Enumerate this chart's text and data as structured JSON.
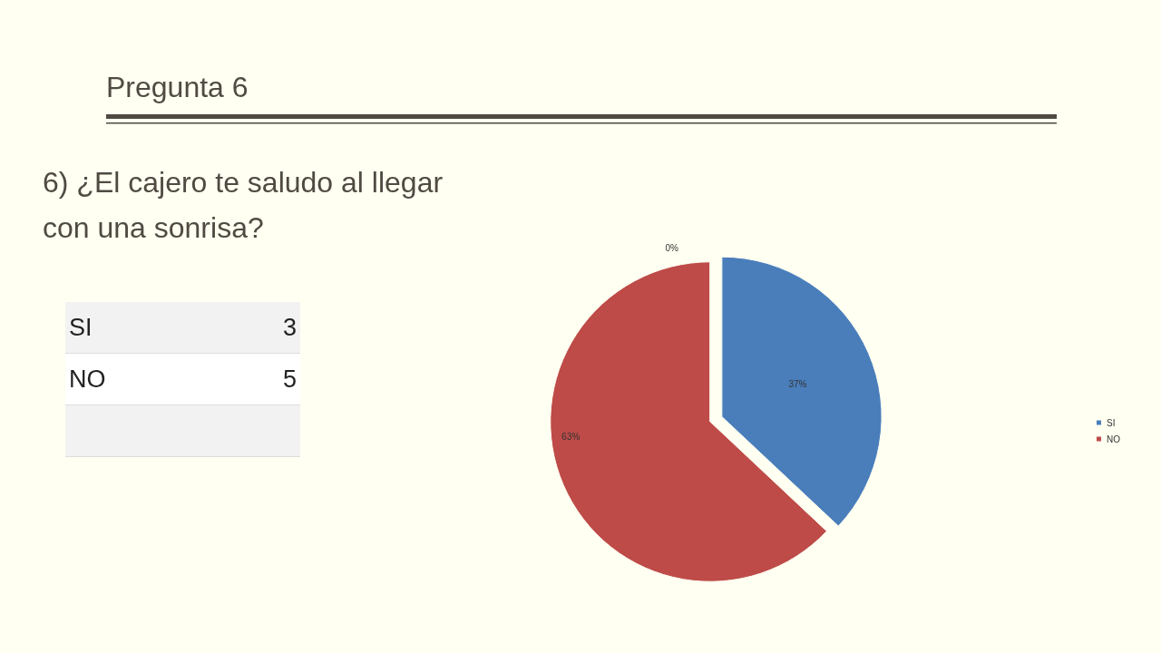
{
  "chart_data": {
    "type": "pie",
    "title": "Pregunta 6",
    "subtitle": "6) ¿El cajero te saludo al llegar con una sonrisa?",
    "categories": [
      "SI",
      "NO",
      null
    ],
    "values": [
      37,
      63,
      0
    ],
    "colors": [
      "#4a7ebb",
      "#be4b48",
      "#9bbb59"
    ],
    "value_labels": [
      "37%",
      "63%",
      "0%"
    ],
    "legend": "right",
    "annotations": [
      "SI",
      "3",
      "NO",
      "5"
    ]
  }
}
